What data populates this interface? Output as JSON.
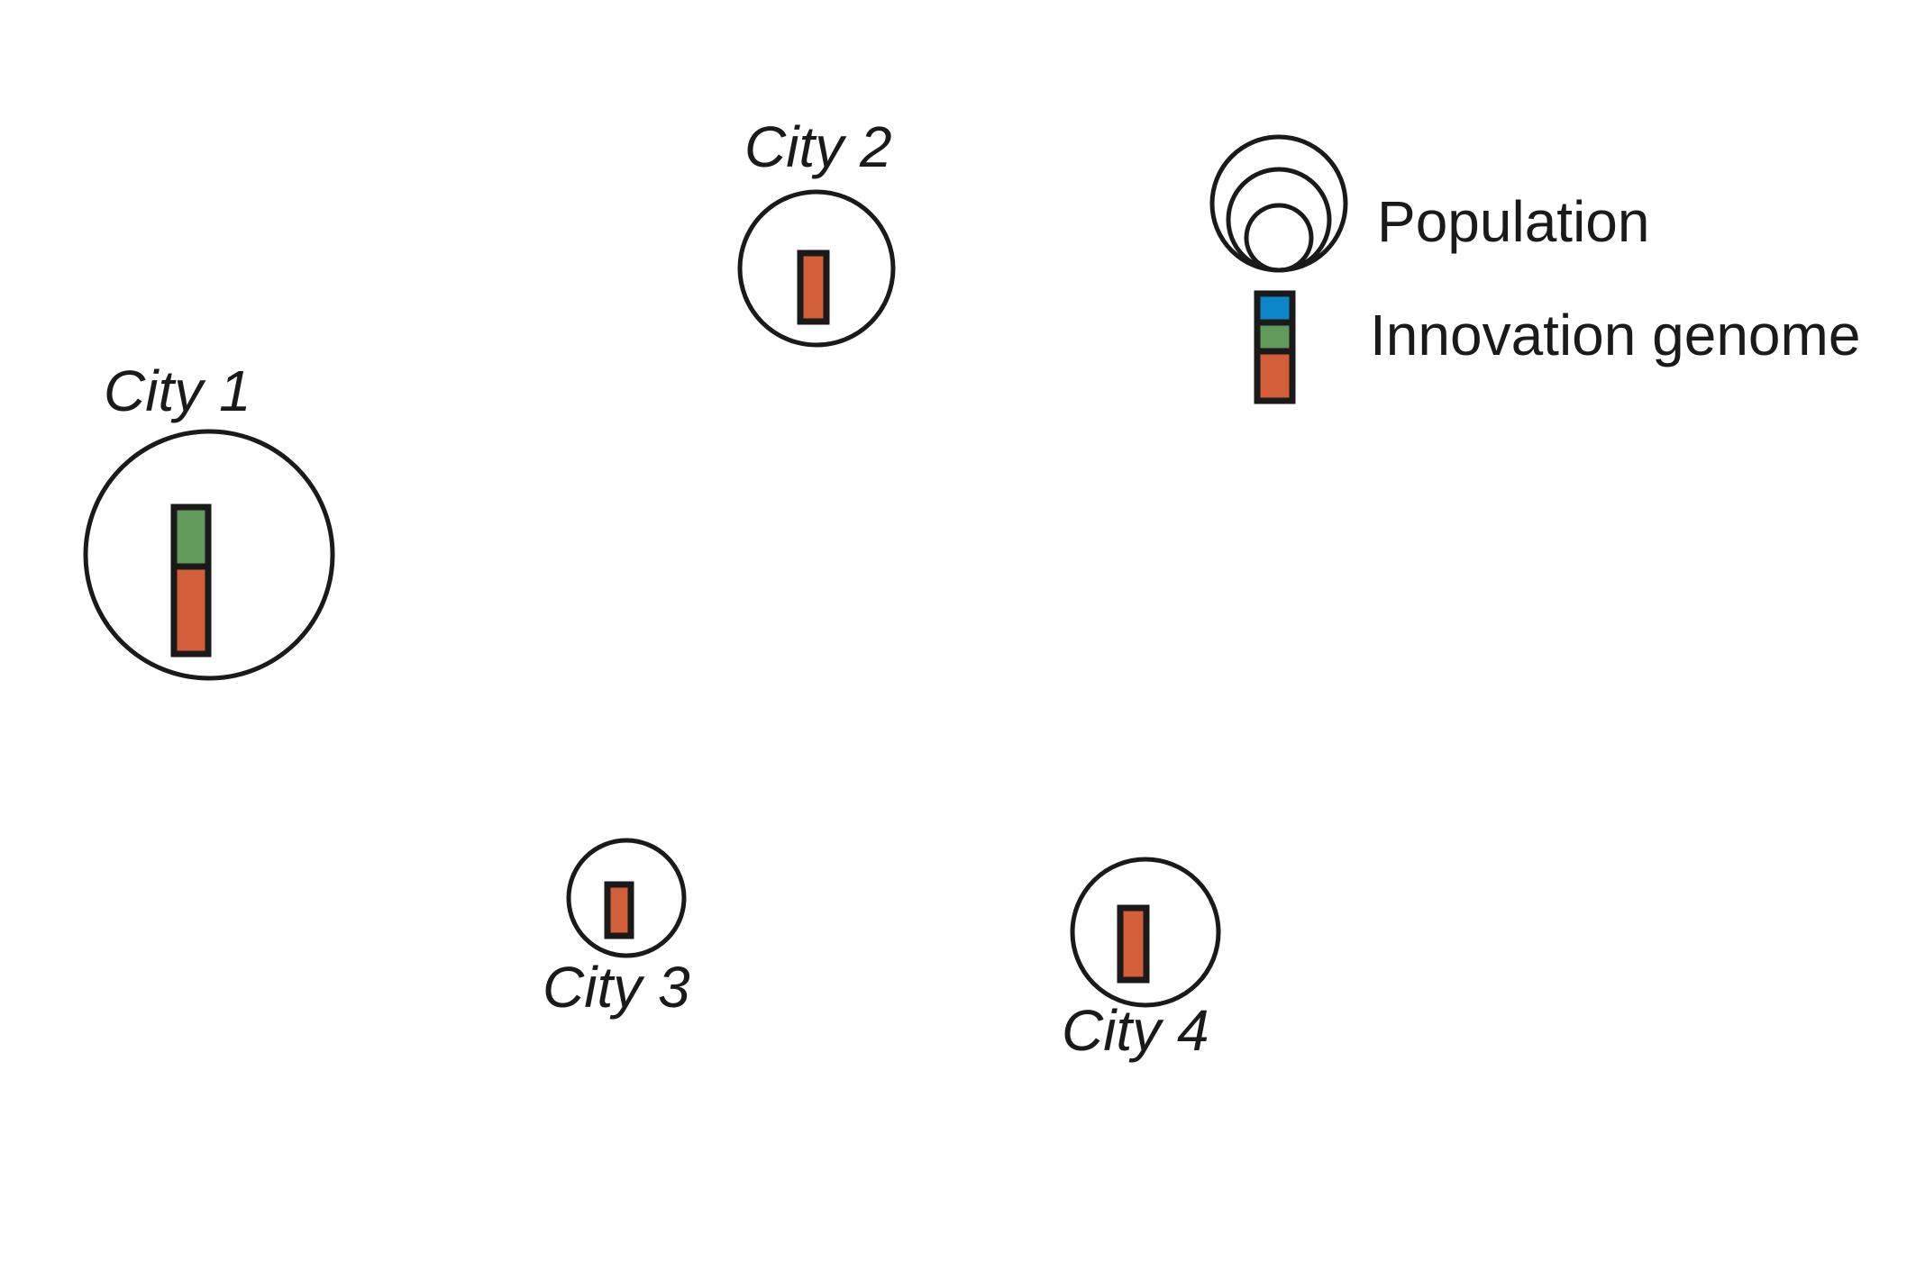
{
  "colors": {
    "outline": "#1a1a1a",
    "orange": "#d35f38",
    "green": "#5f9a5a",
    "blue": "#0b86c8",
    "background": "#ffffff"
  },
  "cities": [
    {
      "id": "city-1",
      "label": "City 1",
      "population": "large",
      "genome": [
        "green",
        "orange"
      ]
    },
    {
      "id": "city-2",
      "label": "City 2",
      "population": "medium",
      "genome": [
        "orange"
      ]
    },
    {
      "id": "city-3",
      "label": "City 3",
      "population": "small",
      "genome": [
        "orange"
      ]
    },
    {
      "id": "city-4",
      "label": "City 4",
      "population": "medium",
      "genome": [
        "orange"
      ]
    }
  ],
  "legend": {
    "population_label": "Population",
    "genome_label": "Innovation genome",
    "genome_colors": [
      "blue",
      "green",
      "orange"
    ]
  }
}
